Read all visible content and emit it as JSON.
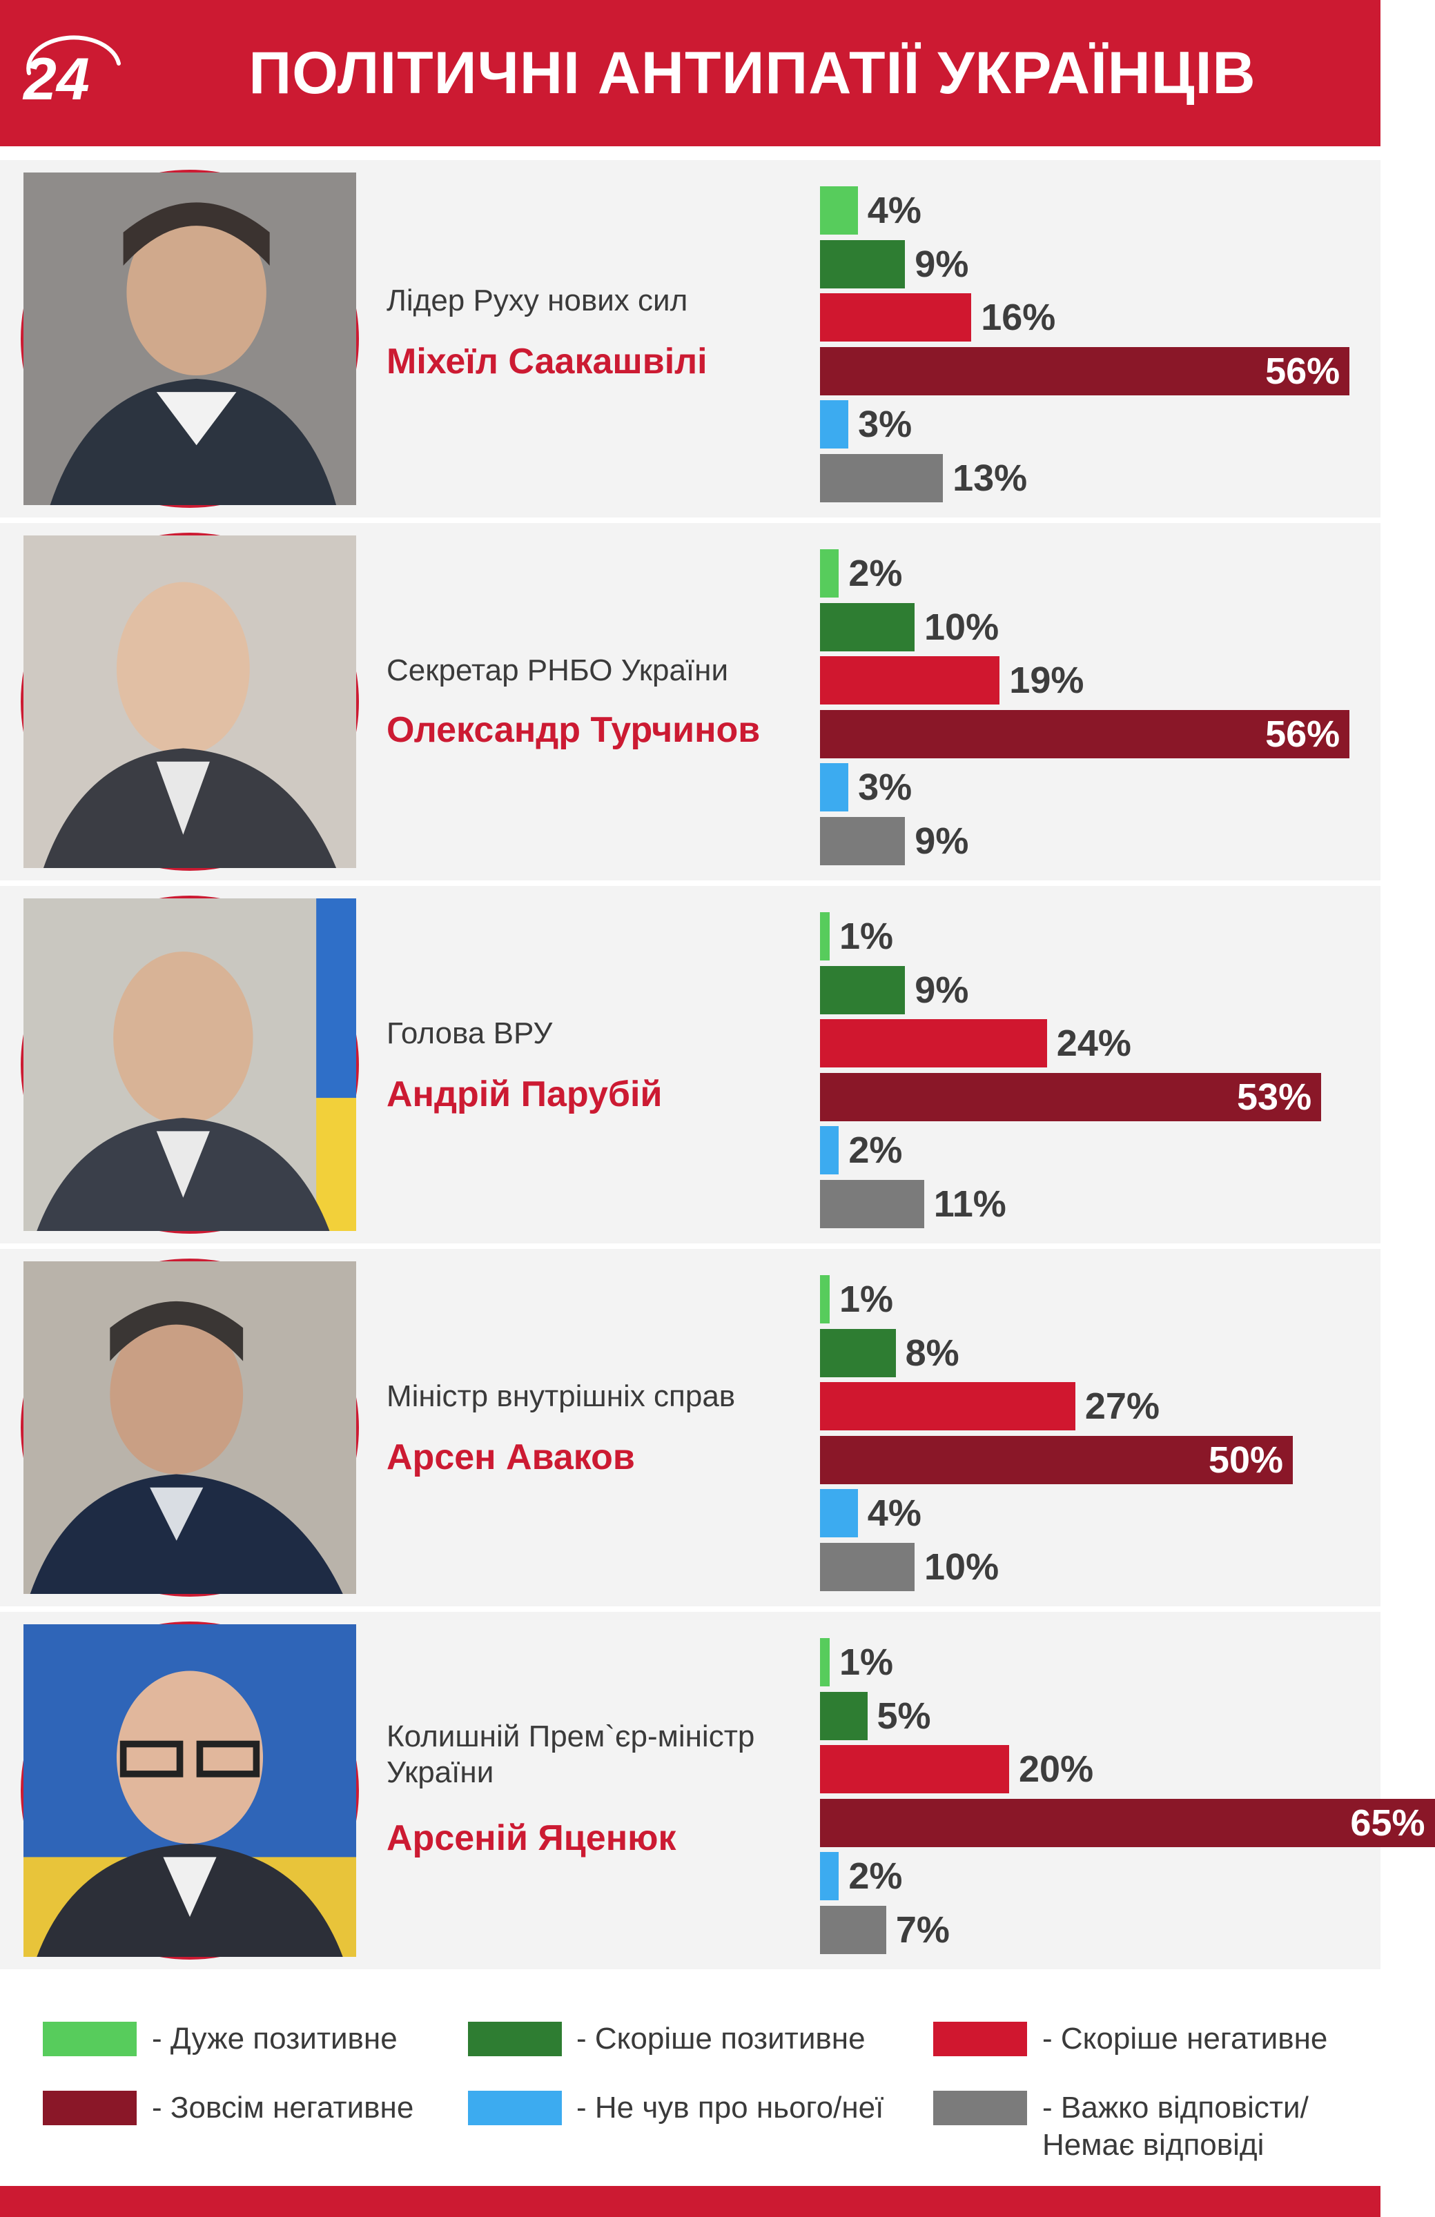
{
  "header": {
    "logo_text": "24",
    "title": "ПОЛІТИЧНІ АНТИПАТІЇ УКРАЇНЦІВ"
  },
  "colors": {
    "very_positive": "#57cc5c",
    "rather_positive": "#2e7d32",
    "rather_negative": "#d0172f",
    "completely_negative": "#8a1728",
    "never_heard": "#3cabf0",
    "hard_to_say": "#7b7b7b",
    "accent": "#cc1a32"
  },
  "chart_data": {
    "type": "bar",
    "orientation": "horizontal",
    "unit": "%",
    "categories": [
      "Дуже позитивне",
      "Скоріше позитивне",
      "Скоріше негативне",
      "Зовсім негативне",
      "Не чув про нього/неї",
      "Важко відповісти/ Немає відповіді"
    ],
    "people": [
      {
        "role": "Лідер Руху нових сил",
        "name": "Міхеїл Саакашвілі",
        "values": [
          4,
          9,
          16,
          56,
          3,
          13
        ]
      },
      {
        "role": "Секретар РНБО України",
        "name": "Олександр Турчинов",
        "values": [
          2,
          10,
          19,
          56,
          3,
          9
        ]
      },
      {
        "role": "Голова ВРУ",
        "name": "Андрій Парубій",
        "values": [
          1,
          9,
          24,
          53,
          2,
          11
        ]
      },
      {
        "role": "Міністр внутрішніх справ",
        "name": "Арсен Аваков",
        "values": [
          1,
          8,
          27,
          50,
          4,
          10
        ]
      },
      {
        "role": "Колишній Прем`єр-міністр України",
        "name": "Арсеній Яценюк",
        "values": [
          1,
          5,
          20,
          65,
          2,
          7
        ]
      }
    ]
  },
  "legend": [
    {
      "label": "- Дуже позитивне",
      "color_key": "very_positive"
    },
    {
      "label": "- Скоріше позитивне",
      "color_key": "rather_positive"
    },
    {
      "label": "- Скоріше негативне",
      "color_key": "rather_negative"
    },
    {
      "label": "- Зовсім негативне",
      "color_key": "completely_negative"
    },
    {
      "label": "- Не чув про нього/неї",
      "color_key": "never_heard"
    },
    {
      "label": "- Важко відповісти/ Немає відповіді",
      "color_key": "hard_to_say"
    }
  ]
}
